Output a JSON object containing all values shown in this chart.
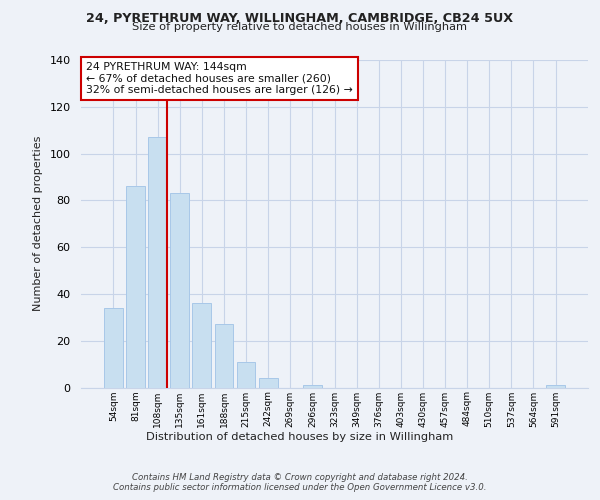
{
  "title": "24, PYRETHRUM WAY, WILLINGHAM, CAMBRIDGE, CB24 5UX",
  "subtitle": "Size of property relative to detached houses in Willingham",
  "xlabel": "Distribution of detached houses by size in Willingham",
  "ylabel": "Number of detached properties",
  "bar_labels": [
    "54sqm",
    "81sqm",
    "108sqm",
    "135sqm",
    "161sqm",
    "188sqm",
    "215sqm",
    "242sqm",
    "269sqm",
    "296sqm",
    "323sqm",
    "349sqm",
    "376sqm",
    "403sqm",
    "430sqm",
    "457sqm",
    "484sqm",
    "510sqm",
    "537sqm",
    "564sqm",
    "591sqm"
  ],
  "bar_values": [
    34,
    86,
    107,
    83,
    36,
    27,
    11,
    4,
    0,
    1,
    0,
    0,
    0,
    0,
    0,
    0,
    0,
    0,
    0,
    0,
    1
  ],
  "bar_color": "#c8dff0",
  "bar_edge_color": "#a8c8e8",
  "highlight_line_color": "#cc0000",
  "annotation_text": "24 PYRETHRUM WAY: 144sqm\n← 67% of detached houses are smaller (260)\n32% of semi-detached houses are larger (126) →",
  "annotation_box_color": "#ffffff",
  "annotation_border_color": "#cc0000",
  "ylim": [
    0,
    140
  ],
  "yticks": [
    0,
    20,
    40,
    60,
    80,
    100,
    120,
    140
  ],
  "footer_line1": "Contains HM Land Registry data © Crown copyright and database right 2024.",
  "footer_line2": "Contains public sector information licensed under the Open Government Licence v3.0.",
  "background_color": "#eef2f8",
  "plot_bg_color": "#eef2f8",
  "grid_color": "#c8d4e8"
}
